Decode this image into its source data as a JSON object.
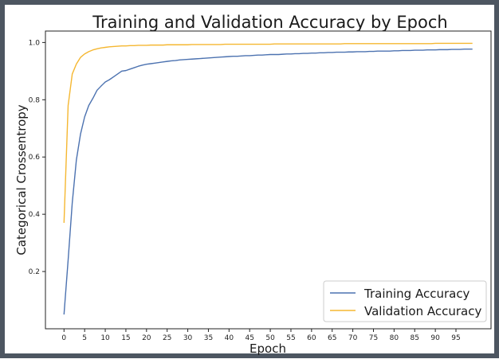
{
  "chart_data": {
    "type": "line",
    "title": "Training and Validation Accuracy by Epoch",
    "xlabel": "Epoch",
    "ylabel": "Categorical Crossentropy",
    "xlim": [
      -4.5,
      103.5
    ],
    "ylim": [
      0.0,
      1.04
    ],
    "x_ticks": [
      0,
      5,
      10,
      15,
      20,
      25,
      30,
      35,
      40,
      45,
      50,
      55,
      60,
      65,
      70,
      75,
      80,
      85,
      90,
      95
    ],
    "y_ticks": [
      0.2,
      0.4,
      0.6,
      0.8,
      1.0
    ],
    "grid": false,
    "legend_position": "bottom-right",
    "series": [
      {
        "name": "Training Accuracy",
        "color": "#4c72b0",
        "values": [
          0.05,
          0.24,
          0.44,
          0.59,
          0.68,
          0.74,
          0.78,
          0.805,
          0.833,
          0.848,
          0.862,
          0.87,
          0.88,
          0.89,
          0.9,
          0.902,
          0.907,
          0.912,
          0.917,
          0.921,
          0.924,
          0.926,
          0.928,
          0.93,
          0.932,
          0.934,
          0.936,
          0.937,
          0.939,
          0.94,
          0.941,
          0.942,
          0.943,
          0.944,
          0.945,
          0.946,
          0.947,
          0.948,
          0.949,
          0.95,
          0.951,
          0.952,
          0.952,
          0.953,
          0.954,
          0.954,
          0.955,
          0.956,
          0.956,
          0.957,
          0.958,
          0.958,
          0.958,
          0.959,
          0.96,
          0.96,
          0.961,
          0.961,
          0.962,
          0.962,
          0.963,
          0.963,
          0.964,
          0.964,
          0.965,
          0.965,
          0.966,
          0.966,
          0.966,
          0.967,
          0.967,
          0.968,
          0.968,
          0.968,
          0.969,
          0.969,
          0.97,
          0.97,
          0.97,
          0.97,
          0.971,
          0.971,
          0.972,
          0.972,
          0.972,
          0.973,
          0.973,
          0.973,
          0.974,
          0.974,
          0.974,
          0.975,
          0.975,
          0.975,
          0.976,
          0.976,
          0.976,
          0.977,
          0.977,
          0.977
        ]
      },
      {
        "name": "Validation Accuracy",
        "color": "#f5b731",
        "values": [
          0.37,
          0.78,
          0.89,
          0.925,
          0.948,
          0.96,
          0.968,
          0.974,
          0.978,
          0.981,
          0.983,
          0.985,
          0.986,
          0.987,
          0.988,
          0.988,
          0.989,
          0.989,
          0.99,
          0.99,
          0.99,
          0.991,
          0.991,
          0.991,
          0.991,
          0.992,
          0.992,
          0.992,
          0.992,
          0.992,
          0.992,
          0.993,
          0.993,
          0.993,
          0.993,
          0.993,
          0.993,
          0.993,
          0.993,
          0.994,
          0.994,
          0.994,
          0.994,
          0.994,
          0.994,
          0.994,
          0.994,
          0.994,
          0.994,
          0.994,
          0.994,
          0.995,
          0.995,
          0.995,
          0.995,
          0.995,
          0.995,
          0.995,
          0.995,
          0.995,
          0.995,
          0.995,
          0.995,
          0.995,
          0.995,
          0.995,
          0.995,
          0.995,
          0.996,
          0.996,
          0.996,
          0.996,
          0.996,
          0.996,
          0.996,
          0.996,
          0.996,
          0.996,
          0.996,
          0.996,
          0.996,
          0.996,
          0.996,
          0.996,
          0.996,
          0.996,
          0.996,
          0.996,
          0.996,
          0.996,
          0.997,
          0.997,
          0.997,
          0.997,
          0.997,
          0.997,
          0.997,
          0.997,
          0.997,
          0.997
        ]
      }
    ]
  }
}
